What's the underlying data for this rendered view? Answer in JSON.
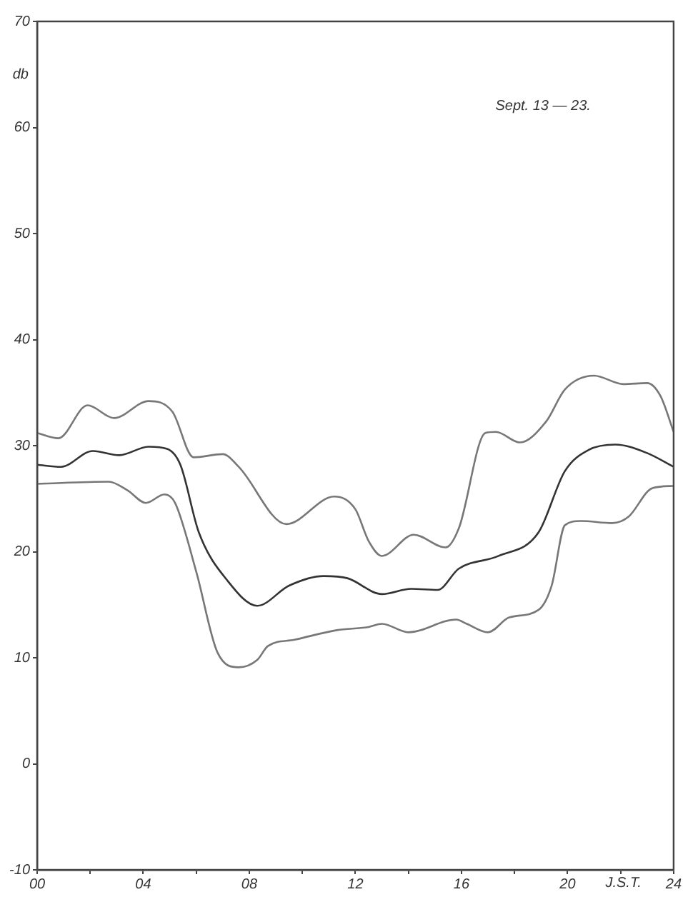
{
  "chart_data": {
    "type": "line",
    "title": "Sept. 13 — 23.",
    "xlabel": "J.S.T.",
    "ylabel": "db",
    "xlim": [
      0,
      24
    ],
    "xticks": [
      {
        "value": 0,
        "label": "00"
      },
      {
        "value": 2,
        "label": null
      },
      {
        "value": 4,
        "label": "04"
      },
      {
        "value": 6,
        "label": null
      },
      {
        "value": 8,
        "label": "08"
      },
      {
        "value": 10,
        "label": null
      },
      {
        "value": 12,
        "label": "12"
      },
      {
        "value": 14,
        "label": null
      },
      {
        "value": 16,
        "label": "16"
      },
      {
        "value": 18,
        "label": null
      },
      {
        "value": 20,
        "label": "20"
      },
      {
        "value": 22,
        "label": null
      },
      {
        "value": 24,
        "label": "24"
      }
    ],
    "ylim": [
      -10,
      70
    ],
    "yticks": [
      -10,
      0,
      10,
      20,
      30,
      40,
      50,
      60,
      70
    ],
    "grid": false,
    "legend": false,
    "marker": "none",
    "line_style": "solid",
    "series": [
      {
        "color": "#777777",
        "x": [
          0,
          0.8,
          1.9,
          2.9,
          4.2,
          5.1,
          5.9,
          7.0,
          7.6,
          9.4,
          11.2,
          12.0,
          12.5,
          13.0,
          14.2,
          15.4,
          15.9,
          16.9,
          17.3,
          18.2,
          19.2,
          19.9,
          21.0,
          22.1,
          23.0,
          23.5,
          24
        ],
        "values": [
          31.2,
          30.7,
          33.8,
          32.6,
          34.2,
          33.2,
          28.9,
          29.2,
          28.0,
          22.6,
          25.2,
          24.0,
          21.0,
          19.6,
          21.6,
          20.4,
          22.2,
          31.2,
          31.3,
          30.3,
          32.3,
          35.3,
          36.6,
          35.8,
          35.9,
          34.7,
          31.3
        ]
      },
      {
        "color": "#333333",
        "x": [
          0,
          0.9,
          2.1,
          3.1,
          4.2,
          4.9,
          5.4,
          6.1,
          7.2,
          8.3,
          9.5,
          10.8,
          11.7,
          13.0,
          14.1,
          15.1,
          15.9,
          17.4,
          18.9,
          19.9,
          20.8,
          21.8,
          23.0,
          24
        ],
        "values": [
          28.2,
          28.0,
          29.5,
          29.1,
          29.9,
          29.7,
          28.2,
          21.8,
          17.2,
          14.9,
          16.8,
          17.7,
          17.5,
          16.0,
          16.5,
          16.4,
          18.4,
          19.6,
          21.8,
          27.6,
          29.6,
          30.1,
          29.3,
          28.0
        ]
      },
      {
        "color": "#777777",
        "x": [
          0,
          2.7,
          3.4,
          4.1,
          4.8,
          5.2,
          6.0,
          6.8,
          7.6,
          8.3,
          8.7,
          9.7,
          11.3,
          12.5,
          13.0,
          14.0,
          15.8,
          16.2,
          17.0,
          17.8,
          18.9,
          19.4,
          19.9,
          20.5,
          21.7,
          22.3,
          23.2,
          24
        ],
        "values": [
          26.4,
          26.6,
          25.8,
          24.6,
          25.4,
          24.6,
          18.1,
          10.5,
          9.1,
          9.8,
          11.1,
          11.7,
          12.6,
          12.9,
          13.2,
          12.4,
          13.6,
          13.2,
          12.4,
          13.8,
          14.5,
          16.8,
          22.5,
          22.9,
          22.7,
          23.3,
          26.0,
          26.2
        ]
      }
    ]
  }
}
